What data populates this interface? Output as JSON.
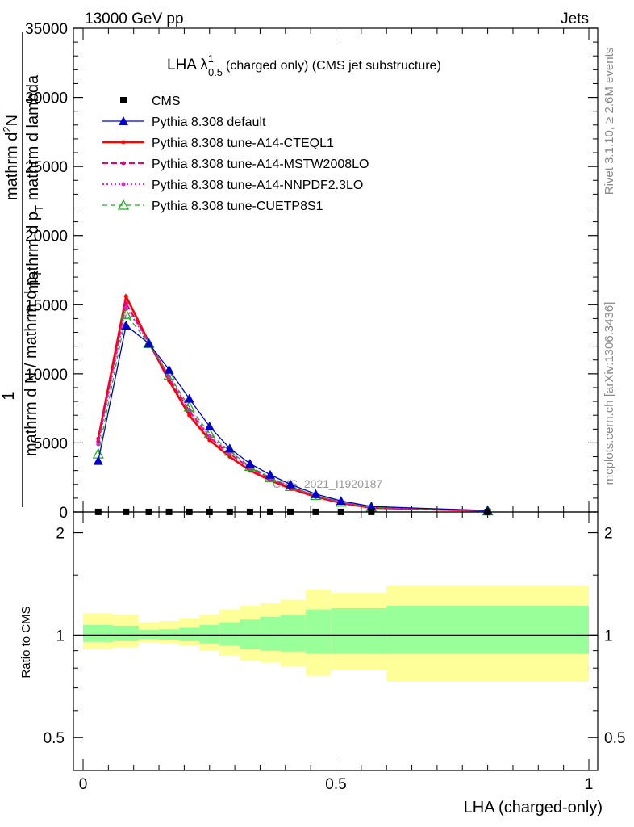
{
  "header": {
    "left": "13000 GeV pp",
    "right": "Jets"
  },
  "side": {
    "rivet": "Rivet 3.1.10, ≥ 2.6M events",
    "mcplots": "mcplots.cern.ch [arXiv:1306.3436]"
  },
  "chart_data": [
    {
      "type": "line",
      "title_main": "LHA λ",
      "title_sup": "1",
      "title_sub": "0.5",
      "title_rest": "(charged only) (CMS jet substructure)",
      "ylabel_frac_num_top": "mathrm d",
      "ylabel_frac_num_sup": "2",
      "ylabel_frac_num_end": "N",
      "ylabel_left": "1",
      "ylabel_den_line1": "mathrm d p",
      "ylabel_den_line1_sub": "T",
      "ylabel_den_line1_end": " mathrm d lambda",
      "ylabel_den_line2": "mathrm d N / mathrm d p",
      "ylabel_den_line2_sub": "T",
      "ylim": [
        0,
        35000
      ],
      "yticks": [
        0,
        5000,
        10000,
        15000,
        20000,
        25000,
        30000,
        35000
      ],
      "yticklabels": [
        "0",
        "5000",
        "10000",
        "15000",
        "20000",
        "25000",
        "30000",
        "35000"
      ],
      "watermark": "CMS_2021_I1920187",
      "x": [
        0.03,
        0.085,
        0.13,
        0.17,
        0.21,
        0.25,
        0.29,
        0.33,
        0.37,
        0.41,
        0.46,
        0.51,
        0.57,
        0.8
      ],
      "series": [
        {
          "name": "CMS",
          "style": "marker-square",
          "color": "#000000",
          "values": [
            5,
            5,
            5,
            5,
            5,
            5,
            5,
            5,
            5,
            5,
            5,
            5,
            5,
            5
          ]
        },
        {
          "name": "Pythia 8.308 default",
          "style": "solid-triangle",
          "color": "#0000cc",
          "values": [
            3700,
            13500,
            12200,
            10300,
            8200,
            6200,
            4600,
            3500,
            2700,
            2000,
            1300,
            800,
            400,
            100
          ]
        },
        {
          "name": "Pythia 8.308 tune-A14-CTEQL1",
          "style": "solid-thick",
          "color": "#ff0000",
          "values": [
            5300,
            15600,
            12300,
            9500,
            7000,
            5200,
            4000,
            3000,
            2300,
            1700,
            1100,
            650,
            300,
            80
          ]
        },
        {
          "name": "Pythia 8.308 tune-A14-MSTW2008LO",
          "style": "dashed",
          "color": "#e6007a",
          "values": [
            5100,
            15100,
            12300,
            9700,
            7300,
            5400,
            4200,
            3200,
            2400,
            1800,
            1150,
            700,
            330,
            80
          ]
        },
        {
          "name": "Pythia 8.308 tune-A14-NNPDF2.3LO",
          "style": "dotted",
          "color": "#dd22dd",
          "values": [
            4900,
            14800,
            12300,
            9800,
            7400,
            5500,
            4300,
            3200,
            2450,
            1800,
            1180,
            700,
            330,
            80
          ]
        },
        {
          "name": "Pythia 8.308 tune-CUETP8S1",
          "style": "dashed-open-triangle",
          "color": "#22aa22",
          "values": [
            4200,
            14300,
            12200,
            9900,
            7600,
            5700,
            4400,
            3300,
            2500,
            1850,
            1200,
            720,
            340,
            80
          ]
        }
      ]
    },
    {
      "type": "area",
      "ylabel": "Ratio to CMS",
      "xlabel": "LHA (charged-only)",
      "ylim": [
        0.4,
        2.3
      ],
      "yticks": [
        0.5,
        1,
        2
      ],
      "yticklabels": [
        "0.5",
        "1",
        "2"
      ],
      "xlim": [
        0,
        1
      ],
      "xticks": [
        0,
        0.5,
        1
      ],
      "xticklabels": [
        "0",
        "0.5",
        "1"
      ],
      "bin_edges": [
        0,
        0.06,
        0.11,
        0.15,
        0.19,
        0.23,
        0.27,
        0.31,
        0.35,
        0.39,
        0.44,
        0.49,
        0.6,
        1.0
      ],
      "inner_band": [
        [
          0.955,
          1.07
        ],
        [
          0.96,
          1.065
        ],
        [
          0.975,
          1.035
        ],
        [
          0.97,
          1.04
        ],
        [
          0.96,
          1.055
        ],
        [
          0.945,
          1.07
        ],
        [
          0.93,
          1.09
        ],
        [
          0.91,
          1.11
        ],
        [
          0.9,
          1.13
        ],
        [
          0.895,
          1.145
        ],
        [
          0.88,
          1.19
        ],
        [
          0.88,
          1.2
        ],
        [
          0.88,
          1.22
        ]
      ],
      "outer_band": [
        [
          0.91,
          1.16
        ],
        [
          0.92,
          1.15
        ],
        [
          0.95,
          1.09
        ],
        [
          0.945,
          1.1
        ],
        [
          0.93,
          1.12
        ],
        [
          0.9,
          1.15
        ],
        [
          0.87,
          1.19
        ],
        [
          0.84,
          1.22
        ],
        [
          0.83,
          1.24
        ],
        [
          0.81,
          1.27
        ],
        [
          0.76,
          1.36
        ],
        [
          0.79,
          1.33
        ],
        [
          0.73,
          1.4
        ]
      ]
    }
  ]
}
